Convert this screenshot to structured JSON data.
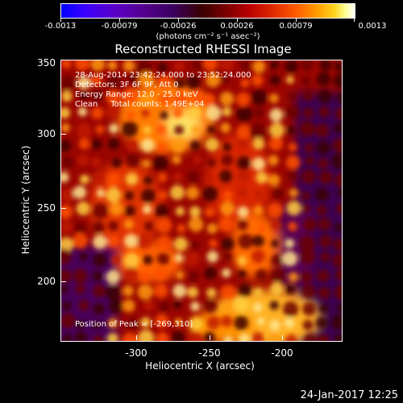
{
  "colorbar": {
    "ticks": [
      "-0.0013",
      "-0.00079",
      "-0.00026",
      "0.00026",
      "0.00079",
      "0.0013"
    ],
    "units": "(photons cm⁻² s⁻¹ asec⁻²)"
  },
  "title": "Reconstructed RHESSI Image",
  "info": {
    "time_range": "28-Aug-2014 23:42:24.000 to 23:52:24.000",
    "detectors": "Detectors: 3F 6F 9F, Att 0",
    "energy_range": "Energy Range: 12.0 - 25.0 keV",
    "clean": "Clean     Total counts: 1.49E+04",
    "peak": "Position of Peak = [-269,310]"
  },
  "axes": {
    "xlabel": "Heliocentric X (arcsec)",
    "ylabel": "Heliocentric Y (arcsec)",
    "xticks": [
      "-300",
      "-250",
      "-200"
    ],
    "yticks": [
      "350",
      "300",
      "250",
      "200"
    ]
  },
  "date_stamp": "24-Jan-2017 12:25"
}
